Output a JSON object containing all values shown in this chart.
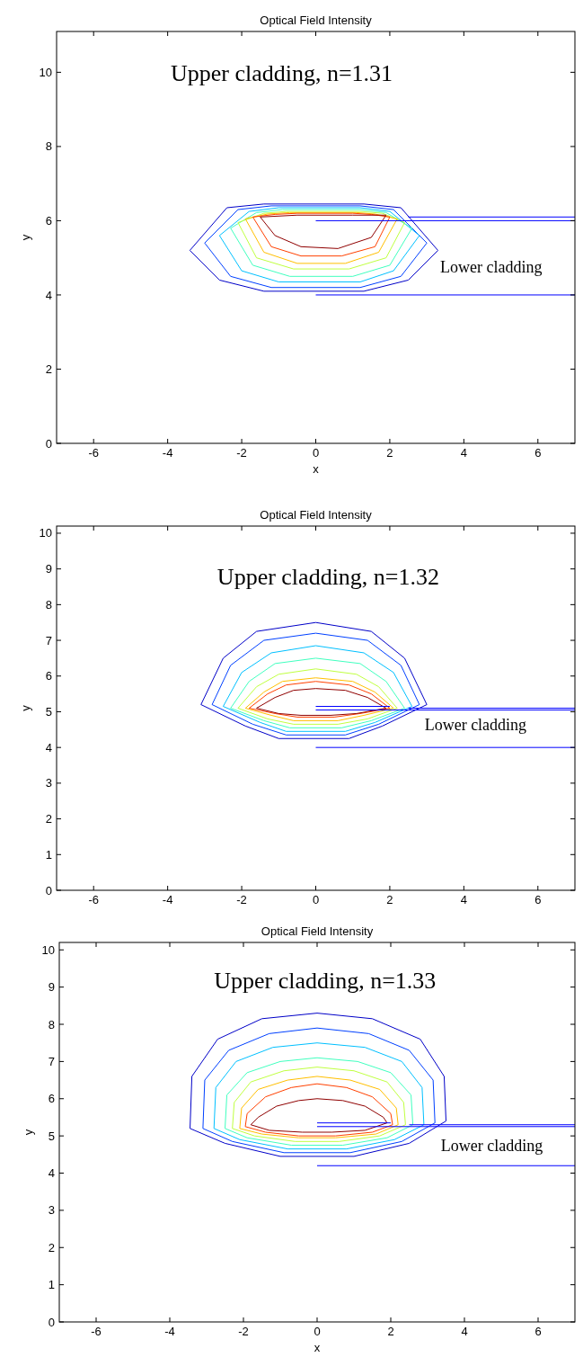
{
  "chart_data": [
    {
      "type": "line",
      "title": "Optical Field Intensity",
      "xlabel": "x",
      "ylabel": "y",
      "xlim": [
        -7,
        7
      ],
      "ylim": [
        0,
        11.1
      ],
      "xticks": [
        -6,
        -4,
        -2,
        0,
        2,
        4,
        6
      ],
      "yticks": [
        0,
        2,
        4,
        6,
        8,
        10
      ],
      "annotations": [
        "Upper cladding, n=1.31",
        "Lower cladding"
      ],
      "series": [
        {
          "color": "#0000c8",
          "x": [
            -3.4,
            -2.4,
            -1.4,
            1.3,
            2.3,
            3.3
          ],
          "values": [
            5.2,
            6.35,
            6.45,
            6.45,
            6.35,
            5.2
          ]
        },
        {
          "color": "#0000c8",
          "x": [
            -3.4,
            -2.6,
            -1.4,
            1.3,
            2.5,
            3.3
          ],
          "values": [
            5.2,
            4.4,
            4.1,
            4.1,
            4.4,
            5.2
          ]
        },
        {
          "color": "#0040ff",
          "x": [
            -3.0,
            -2.1,
            -1.2,
            1.2,
            2.1,
            3.0
          ],
          "values": [
            5.4,
            6.3,
            6.4,
            6.4,
            6.3,
            5.4
          ]
        },
        {
          "color": "#0040ff",
          "x": [
            -3.0,
            -2.3,
            -1.2,
            1.2,
            2.3,
            3.0
          ],
          "values": [
            5.4,
            4.5,
            4.2,
            4.2,
            4.5,
            5.4
          ]
        },
        {
          "color": "#00c0ff",
          "x": [
            -2.6,
            -1.8,
            -1.0,
            1.2,
            2.0,
            2.8
          ],
          "values": [
            5.6,
            6.25,
            6.35,
            6.35,
            6.25,
            5.6
          ]
        },
        {
          "color": "#00c0ff",
          "x": [
            -2.6,
            -2.0,
            -1.0,
            1.2,
            2.1,
            2.8
          ],
          "values": [
            5.6,
            4.65,
            4.35,
            4.35,
            4.65,
            5.6
          ]
        },
        {
          "color": "#40ffbf",
          "x": [
            -2.3,
            -1.6,
            -0.9,
            1.2,
            1.9,
            2.6
          ],
          "values": [
            5.8,
            6.22,
            6.3,
            6.3,
            6.22,
            5.8
          ]
        },
        {
          "color": "#40ffbf",
          "x": [
            -2.3,
            -1.7,
            -0.7,
            1.0,
            2.0,
            2.6
          ],
          "values": [
            5.8,
            4.8,
            4.5,
            4.5,
            4.8,
            5.8
          ]
        },
        {
          "color": "#c0ff40",
          "x": [
            -2.1,
            -1.4,
            -0.8,
            1.2,
            1.8,
            2.4
          ],
          "values": [
            5.95,
            6.2,
            6.25,
            6.25,
            6.2,
            5.95
          ]
        },
        {
          "color": "#c0ff40",
          "x": [
            -2.1,
            -1.6,
            -0.6,
            0.9,
            1.9,
            2.4
          ],
          "values": [
            5.95,
            5.0,
            4.7,
            4.7,
            5.0,
            5.95
          ]
        },
        {
          "color": "#ffbf00",
          "x": [
            -1.9,
            -1.3,
            -0.7,
            1.1,
            1.6,
            2.2
          ],
          "values": [
            6.05,
            6.18,
            6.22,
            6.22,
            6.18,
            6.05
          ]
        },
        {
          "color": "#ffbf00",
          "x": [
            -1.9,
            -1.4,
            -0.5,
            0.8,
            1.7,
            2.2
          ],
          "values": [
            6.05,
            5.15,
            4.85,
            4.85,
            5.15,
            6.05
          ]
        },
        {
          "color": "#ff4000",
          "x": [
            -1.7,
            -1.1,
            -0.5,
            1.0,
            1.5,
            2.0
          ],
          "values": [
            6.1,
            6.17,
            6.2,
            6.2,
            6.17,
            6.1
          ]
        },
        {
          "color": "#ff4000",
          "x": [
            -1.7,
            -1.2,
            -0.4,
            0.7,
            1.6,
            2.0
          ],
          "values": [
            6.1,
            5.3,
            5.05,
            5.05,
            5.3,
            6.1
          ]
        },
        {
          "color": "#8f0000",
          "x": [
            -1.5,
            -0.5,
            1.0,
            1.9
          ],
          "values": [
            6.1,
            6.15,
            6.15,
            6.15
          ]
        },
        {
          "color": "#8f0000",
          "x": [
            -1.5,
            -1.1,
            -0.4,
            0.6,
            1.5,
            1.9
          ],
          "values": [
            6.1,
            5.6,
            5.3,
            5.25,
            5.55,
            6.15
          ]
        },
        {
          "color": "#0000ff",
          "x": [
            0,
            7
          ],
          "values": [
            6.0,
            6.0
          ]
        },
        {
          "color": "#0000ff",
          "x": [
            2.5,
            7
          ],
          "values": [
            6.1,
            6.1
          ]
        },
        {
          "color": "#0000ff",
          "x": [
            0,
            7
          ],
          "values": [
            4.0,
            4.0
          ]
        }
      ]
    },
    {
      "type": "line",
      "title": "Optical Field Intensity",
      "ylabel": "y",
      "xlim": [
        -7,
        7
      ],
      "ylim": [
        0,
        10.2
      ],
      "xticks": [
        -6,
        -4,
        -2,
        0,
        2,
        4,
        6
      ],
      "yticks": [
        0,
        1,
        2,
        3,
        4,
        5,
        6,
        7,
        8,
        9,
        10
      ],
      "annotations": [
        "Upper cladding, n=1.32",
        "Lower cladding"
      ],
      "series": [
        {
          "color": "#0000c8",
          "x": [
            -3.1,
            -2.5,
            -1.6,
            0,
            1.5,
            2.4,
            3.0
          ],
          "values": [
            5.2,
            6.5,
            7.25,
            7.5,
            7.25,
            6.5,
            5.2
          ]
        },
        {
          "color": "#0000c8",
          "x": [
            -3.1,
            -1.9,
            -1.0,
            0.9,
            1.8,
            3.0
          ],
          "values": [
            5.2,
            4.6,
            4.25,
            4.25,
            4.6,
            5.2
          ]
        },
        {
          "color": "#0040ff",
          "x": [
            -2.8,
            -2.3,
            -1.4,
            0,
            1.4,
            2.3,
            2.8
          ],
          "values": [
            5.2,
            6.3,
            7.0,
            7.2,
            7.0,
            6.3,
            5.2
          ]
        },
        {
          "color": "#0040ff",
          "x": [
            -2.8,
            -1.7,
            -0.8,
            0.8,
            1.7,
            2.8
          ],
          "values": [
            5.2,
            4.65,
            4.35,
            4.35,
            4.65,
            5.2
          ]
        },
        {
          "color": "#00c0ff",
          "x": [
            -2.5,
            -2.0,
            -1.2,
            0,
            1.3,
            2.1,
            2.6
          ],
          "values": [
            5.15,
            6.1,
            6.65,
            6.85,
            6.65,
            6.1,
            5.15
          ]
        },
        {
          "color": "#00c0ff",
          "x": [
            -2.5,
            -1.5,
            -0.8,
            0.8,
            1.6,
            2.6
          ],
          "values": [
            5.15,
            4.7,
            4.45,
            4.45,
            4.7,
            5.15
          ]
        },
        {
          "color": "#40ffbf",
          "x": [
            -2.3,
            -1.8,
            -1.1,
            0,
            1.2,
            1.9,
            2.4
          ],
          "values": [
            5.1,
            5.85,
            6.35,
            6.5,
            6.35,
            5.85,
            5.1
          ]
        },
        {
          "color": "#40ffbf",
          "x": [
            -2.3,
            -1.4,
            -0.7,
            0.7,
            1.5,
            2.4
          ],
          "values": [
            5.1,
            4.75,
            4.55,
            4.55,
            4.75,
            5.1
          ]
        },
        {
          "color": "#c0ff40",
          "x": [
            -2.1,
            -1.6,
            -1.0,
            0,
            1.1,
            1.7,
            2.2
          ],
          "values": [
            5.1,
            5.7,
            6.05,
            6.2,
            6.05,
            5.7,
            5.1
          ]
        },
        {
          "color": "#c0ff40",
          "x": [
            -2.1,
            -1.3,
            -0.6,
            0.6,
            1.4,
            2.2
          ],
          "values": [
            5.1,
            4.8,
            4.65,
            4.65,
            4.8,
            5.1
          ]
        },
        {
          "color": "#ffbf00",
          "x": [
            -1.9,
            -1.4,
            -0.9,
            0,
            1.0,
            1.6,
            2.1
          ],
          "values": [
            5.1,
            5.55,
            5.85,
            5.95,
            5.85,
            5.55,
            5.1
          ]
        },
        {
          "color": "#ffbf00",
          "x": [
            -1.9,
            -1.2,
            -0.6,
            0.6,
            1.3,
            2.1
          ],
          "values": [
            5.1,
            4.9,
            4.75,
            4.75,
            4.9,
            5.1
          ]
        },
        {
          "color": "#ff4000",
          "x": [
            -1.8,
            -1.3,
            -0.8,
            0,
            0.9,
            1.5,
            2.0
          ],
          "values": [
            5.1,
            5.5,
            5.75,
            5.85,
            5.75,
            5.5,
            5.1
          ]
        },
        {
          "color": "#ff4000",
          "x": [
            -1.8,
            -1.1,
            -0.5,
            0.5,
            1.2,
            2.0
          ],
          "values": [
            5.1,
            4.95,
            4.85,
            4.85,
            4.95,
            5.1
          ]
        },
        {
          "color": "#8f0000",
          "x": [
            -1.6,
            -1.1,
            -0.6,
            0,
            0.8,
            1.4,
            1.9
          ],
          "values": [
            5.1,
            5.4,
            5.6,
            5.65,
            5.6,
            5.4,
            5.1
          ]
        },
        {
          "color": "#8f0000",
          "x": [
            -1.6,
            -1.0,
            -0.4,
            0.4,
            1.1,
            1.9
          ],
          "values": [
            5.1,
            4.95,
            4.9,
            4.9,
            4.95,
            5.1
          ]
        },
        {
          "color": "#0000ff",
          "x": [
            0,
            2
          ],
          "values": [
            5.15,
            5.15
          ]
        },
        {
          "color": "#0000ff",
          "x": [
            0,
            7
          ],
          "values": [
            5.05,
            5.05
          ]
        },
        {
          "color": "#0000ff",
          "x": [
            2.5,
            7
          ],
          "values": [
            5.1,
            5.1
          ]
        },
        {
          "color": "#0000ff",
          "x": [
            0,
            7
          ],
          "values": [
            4.0,
            4.0
          ]
        }
      ]
    },
    {
      "type": "line",
      "title": "Optical Field Intensity",
      "xlabel": "x",
      "ylabel": "y",
      "xlim": [
        -7,
        7
      ],
      "ylim": [
        0,
        10.2
      ],
      "xticks": [
        -6,
        -4,
        -2,
        0,
        2,
        4,
        6
      ],
      "yticks": [
        0,
        1,
        2,
        3,
        4,
        5,
        6,
        7,
        8,
        9,
        10
      ],
      "annotations": [
        "Upper cladding, n=1.33",
        "Lower cladding"
      ],
      "series": [
        {
          "color": "#0000c8",
          "x": [
            -3.45,
            -3.4,
            -2.7,
            -1.5,
            0,
            1.5,
            2.8,
            3.45,
            3.5
          ],
          "values": [
            5.2,
            6.6,
            7.6,
            8.15,
            8.3,
            8.15,
            7.6,
            6.6,
            5.4
          ]
        },
        {
          "color": "#0000c8",
          "x": [
            -3.45,
            -2.5,
            -1.0,
            1.0,
            2.5,
            3.5
          ],
          "values": [
            5.2,
            4.8,
            4.45,
            4.45,
            4.8,
            5.4
          ]
        },
        {
          "color": "#0040ff",
          "x": [
            -3.1,
            -3.05,
            -2.4,
            -1.3,
            0,
            1.4,
            2.5,
            3.15,
            3.2
          ],
          "values": [
            5.2,
            6.5,
            7.3,
            7.75,
            7.9,
            7.75,
            7.3,
            6.5,
            5.35
          ]
        },
        {
          "color": "#0040ff",
          "x": [
            -3.1,
            -2.3,
            -0.9,
            0.9,
            2.3,
            3.2
          ],
          "values": [
            5.2,
            4.85,
            4.55,
            4.55,
            4.85,
            5.35
          ]
        },
        {
          "color": "#00c0ff",
          "x": [
            -2.8,
            -2.75,
            -2.2,
            -1.2,
            0,
            1.3,
            2.3,
            2.85,
            2.9
          ],
          "values": [
            5.2,
            6.3,
            7.0,
            7.38,
            7.5,
            7.38,
            7.0,
            6.3,
            5.3
          ]
        },
        {
          "color": "#00c0ff",
          "x": [
            -2.8,
            -2.1,
            -0.8,
            0.8,
            2.1,
            2.9
          ],
          "values": [
            5.2,
            4.9,
            4.65,
            4.65,
            4.9,
            5.3
          ]
        },
        {
          "color": "#40ffbf",
          "x": [
            -2.5,
            -2.45,
            -1.9,
            -1.0,
            0,
            1.1,
            2.0,
            2.55,
            2.6
          ],
          "values": [
            5.2,
            6.1,
            6.7,
            7.0,
            7.1,
            7.0,
            6.7,
            6.1,
            5.3
          ]
        },
        {
          "color": "#40ffbf",
          "x": [
            -2.5,
            -1.9,
            -0.7,
            0.7,
            1.9,
            2.6
          ],
          "values": [
            5.2,
            4.95,
            4.75,
            4.75,
            4.95,
            5.3
          ]
        },
        {
          "color": "#c0ff40",
          "x": [
            -2.3,
            -2.25,
            -1.8,
            -0.9,
            0,
            1.0,
            1.9,
            2.35,
            2.4
          ],
          "values": [
            5.2,
            5.9,
            6.45,
            6.75,
            6.85,
            6.75,
            6.45,
            5.9,
            5.3
          ]
        },
        {
          "color": "#c0ff40",
          "x": [
            -2.3,
            -1.7,
            -0.6,
            0.6,
            1.7,
            2.4
          ],
          "values": [
            5.2,
            5.0,
            4.85,
            4.85,
            5.0,
            5.3
          ]
        },
        {
          "color": "#ffbf00",
          "x": [
            -2.1,
            -2.05,
            -1.6,
            -0.8,
            0,
            0.9,
            1.7,
            2.15,
            2.2
          ],
          "values": [
            5.2,
            5.75,
            6.25,
            6.5,
            6.6,
            6.5,
            6.25,
            5.75,
            5.3
          ]
        },
        {
          "color": "#ffbf00",
          "x": [
            -2.1,
            -1.5,
            -0.5,
            0.5,
            1.6,
            2.2
          ],
          "values": [
            5.2,
            5.05,
            4.95,
            4.95,
            5.05,
            5.3
          ]
        },
        {
          "color": "#ff4000",
          "x": [
            -1.95,
            -1.9,
            -1.4,
            -0.7,
            0,
            0.8,
            1.5,
            2.0,
            2.05
          ],
          "values": [
            5.25,
            5.6,
            6.05,
            6.3,
            6.4,
            6.3,
            6.05,
            5.6,
            5.3
          ]
        },
        {
          "color": "#ff4000",
          "x": [
            -1.95,
            -1.4,
            -0.5,
            0.5,
            1.5,
            2.05
          ],
          "values": [
            5.25,
            5.1,
            5.0,
            5.0,
            5.1,
            5.3
          ]
        },
        {
          "color": "#8f0000",
          "x": [
            -1.8,
            -1.6,
            -1.1,
            -0.5,
            0,
            0.7,
            1.3,
            1.8,
            1.9
          ],
          "values": [
            5.3,
            5.5,
            5.8,
            5.95,
            6.0,
            5.95,
            5.8,
            5.5,
            5.35
          ]
        },
        {
          "color": "#8f0000",
          "x": [
            -1.8,
            -1.3,
            -0.4,
            0.4,
            1.3,
            1.9
          ],
          "values": [
            5.3,
            5.15,
            5.1,
            5.1,
            5.15,
            5.35
          ]
        },
        {
          "color": "#0000ff",
          "x": [
            0,
            2
          ],
          "values": [
            5.35,
            5.35
          ]
        },
        {
          "color": "#0000ff",
          "x": [
            0,
            7
          ],
          "values": [
            5.25,
            5.25
          ]
        },
        {
          "color": "#0000ff",
          "x": [
            2.5,
            7
          ],
          "values": [
            5.3,
            5.3
          ]
        },
        {
          "color": "#0000ff",
          "x": [
            0,
            7
          ],
          "values": [
            4.2,
            4.2
          ]
        }
      ]
    }
  ]
}
